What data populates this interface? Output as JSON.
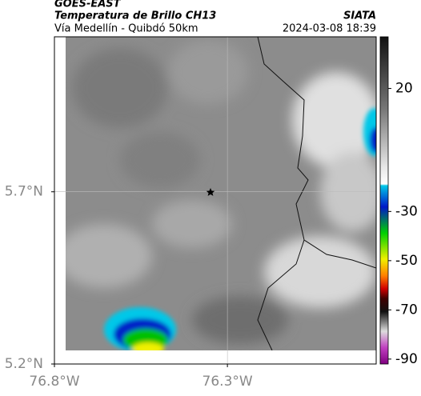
{
  "chart_data": {
    "type": "map",
    "title": "GOES-EAST",
    "subtitle": "Temperatura de Brillo CH13",
    "route": "Vía Medellín - Quibdó 50km",
    "source": "SIATA",
    "timestamp": "2024-03-08 18:39",
    "xlim": [
      -76.8,
      -75.87
    ],
    "ylim": [
      5.2,
      6.15
    ],
    "xticks": [
      {
        "value": -76.8,
        "label": "76.8°W"
      },
      {
        "value": -76.3,
        "label": "76.3°W"
      }
    ],
    "yticks": [
      {
        "value": 5.2,
        "label": "5.2°N"
      },
      {
        "value": 5.7,
        "label": "5.7°N"
      }
    ],
    "grid": true,
    "clim": [
      -92,
      41
    ],
    "cticks": [
      20,
      -30,
      -50,
      -70,
      -90
    ]
  }
}
